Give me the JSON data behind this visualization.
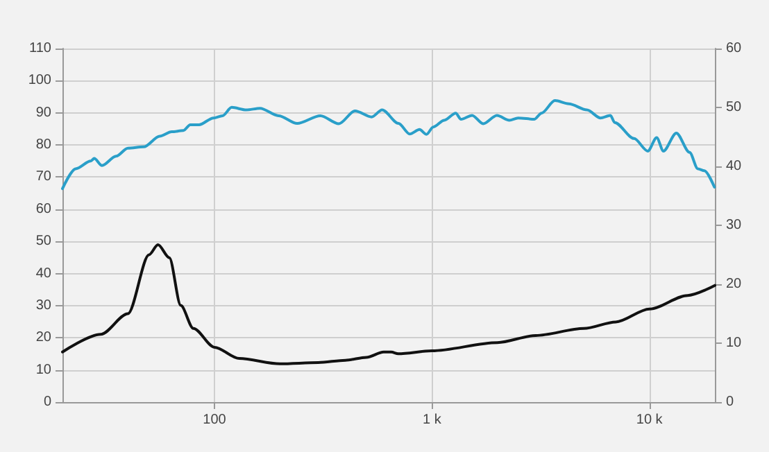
{
  "chart_data": {
    "type": "line",
    "xlim": [
      20,
      20000
    ],
    "xticks": [
      {
        "value": 100,
        "label": "100"
      },
      {
        "value": 1000,
        "label": "1 k"
      },
      {
        "value": 10000,
        "label": "10 k"
      }
    ],
    "log": "x",
    "ylim": [
      0,
      110
    ],
    "yticks": [
      0,
      10,
      20,
      30,
      40,
      50,
      60,
      70,
      80,
      90,
      100,
      110
    ],
    "y2lim": [
      0,
      60
    ],
    "y2ticks": [
      0,
      10,
      20,
      30,
      40,
      50,
      60
    ],
    "grid": true,
    "marker": "none",
    "line_style": "solid",
    "series": [
      {
        "color": "#2a9fc9",
        "x": [
          20,
          23,
          27,
          28,
          30.4,
          35.3,
          40,
          47.3,
          56,
          63.6,
          72,
          77.4,
          85,
          99,
          109,
          120,
          140,
          162,
          197,
          240,
          307,
          373,
          443,
          528,
          590,
          702,
          790,
          877,
          944,
          1014,
          1140,
          1286,
          1360,
          1530,
          1720,
          1990,
          2270,
          2490,
          2960,
          3190,
          3680,
          4260,
          5160,
          5960,
          6620,
          6920,
          8500,
          9830,
          10800,
          11600,
          13300,
          15300,
          16700,
          17900,
          19900
        ],
        "values": [
          66.4,
          72.6,
          75,
          75.8,
          73.6,
          76.5,
          79,
          79.4,
          82.7,
          84.1,
          84.5,
          86.3,
          86.3,
          88.4,
          89.1,
          91.7,
          90.9,
          91.4,
          89.1,
          86.7,
          89.1,
          86.6,
          90.6,
          88.7,
          90.9,
          86.7,
          83.4,
          84.8,
          83.3,
          85.6,
          87.7,
          89.9,
          88,
          89.2,
          86.6,
          89.2,
          87.7,
          88.4,
          88,
          89.9,
          93.8,
          92.8,
          90.9,
          88.4,
          89.2,
          87,
          82,
          78.1,
          82.3,
          78.1,
          83.7,
          77.7,
          72.6,
          72,
          66.9
        ]
      },
      {
        "color": "#111111",
        "axis": "y2",
        "x": [
          20,
          30,
          40,
          50,
          55,
          62,
          70,
          80,
          100,
          130,
          200,
          300,
          400,
          500,
          600,
          650,
          700,
          1000,
          2000,
          3000,
          5000,
          7000,
          10000,
          15000,
          20000
        ],
        "values": [
          8.5,
          11.5,
          15,
          25,
          26.7,
          24.5,
          16.4,
          12.5,
          9.3,
          7.4,
          6.5,
          6.7,
          7.1,
          7.6,
          8.5,
          8.5,
          8.2,
          8.7,
          10.1,
          11.3,
          12.5,
          13.6,
          15.8,
          18.1,
          19.8
        ]
      }
    ]
  }
}
